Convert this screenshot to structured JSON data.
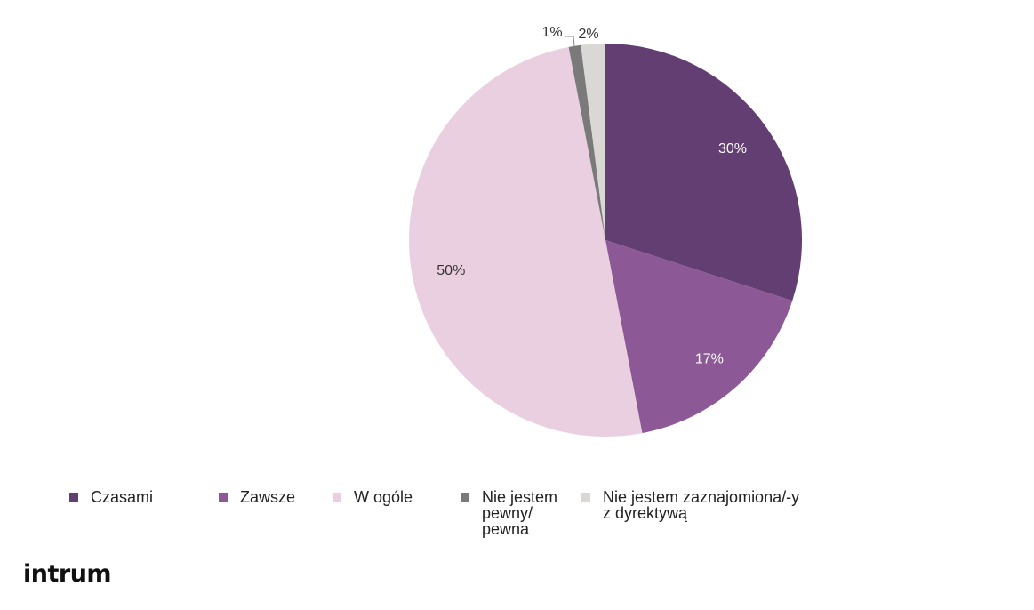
{
  "logo": "intrum",
  "chart_data": {
    "type": "pie",
    "start_angle_deg": 0,
    "direction": "clockwise",
    "slices": [
      {
        "name": "Czasami",
        "value": 30,
        "label": "30%",
        "color": "#633E72"
      },
      {
        "name": "Zawsze",
        "value": 17,
        "label": "17%",
        "color": "#8C5996"
      },
      {
        "name": "W ogóle",
        "value": 50,
        "label": "50%",
        "color": "#EACFE1"
      },
      {
        "name": "Nie jestem pewny/ pewna",
        "value": 1,
        "label": "1%",
        "color": "#7A7A7A"
      },
      {
        "name": "Nie jestem zaznajomiona/-y z dyrektywą",
        "value": 2,
        "label": "2%",
        "color": "#DAD8D4"
      }
    ],
    "legend_position": "bottom"
  },
  "legend": [
    {
      "lines": [
        "Czasami"
      ],
      "color": "#633E72"
    },
    {
      "lines": [
        "Zawsze"
      ],
      "color": "#8C5996"
    },
    {
      "lines": [
        "W ogóle"
      ],
      "color": "#EACFE1"
    },
    {
      "lines": [
        "Nie jestem",
        "pewny/",
        "pewna"
      ],
      "color": "#7A7A7A"
    },
    {
      "lines": [
        "Nie jestem zaznajomiona/-y",
        "z dyrektywą"
      ],
      "color": "#DAD8D4"
    }
  ]
}
